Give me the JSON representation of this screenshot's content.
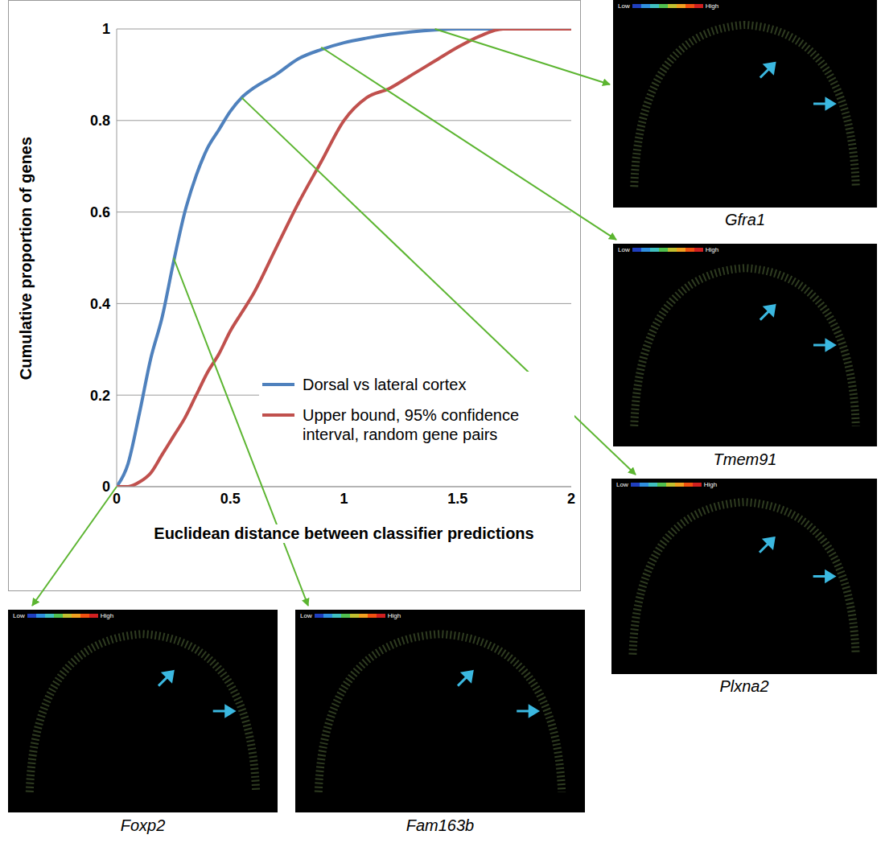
{
  "chart_data": {
    "type": "line",
    "x_label": "Euclidean distance between classifier predictions",
    "y_label": "Cumulative proportion of genes",
    "x": [
      0,
      0.05,
      0.1,
      0.15,
      0.2,
      0.25,
      0.3,
      0.35,
      0.4,
      0.45,
      0.5,
      0.55,
      0.6,
      0.7,
      0.8,
      0.9,
      1.0,
      1.1,
      1.2,
      1.3,
      1.4,
      1.5,
      1.6,
      1.7,
      1.8,
      1.9,
      2.0
    ],
    "series": [
      {
        "name": "Dorsal vs lateral cortex",
        "color": "#4f81bd",
        "values": [
          0,
          0.05,
          0.16,
          0.28,
          0.37,
          0.49,
          0.6,
          0.68,
          0.74,
          0.78,
          0.82,
          0.85,
          0.87,
          0.9,
          0.935,
          0.955,
          0.97,
          0.98,
          0.988,
          0.994,
          0.998,
          1,
          1,
          1,
          1,
          1,
          1
        ]
      },
      {
        "name": "Upper bound, 95% confidence interval, random gene pairs",
        "color": "#c0504d",
        "values": [
          0,
          0,
          0.01,
          0.03,
          0.07,
          0.11,
          0.15,
          0.2,
          0.25,
          0.29,
          0.34,
          0.38,
          0.42,
          0.52,
          0.62,
          0.71,
          0.8,
          0.85,
          0.87,
          0.9,
          0.93,
          0.96,
          0.985,
          1,
          1,
          1,
          1
        ]
      }
    ],
    "xlim": [
      0,
      2
    ],
    "ylim": [
      0,
      1
    ],
    "xticks": [
      0,
      0.5,
      1,
      1.5,
      2
    ],
    "yticks": [
      0,
      0.2,
      0.4,
      0.6,
      0.8,
      1
    ],
    "grid": true,
    "legend": "lower right"
  },
  "images": [
    {
      "label": "Gfra1",
      "point": [
        1.4,
        1.0
      ]
    },
    {
      "label": "Tmem91",
      "point": [
        0.9,
        0.96
      ]
    },
    {
      "label": "Plxna2",
      "point": [
        0.55,
        0.85
      ]
    },
    {
      "label": "Foxp2",
      "point": [
        0,
        0
      ]
    },
    {
      "label": "Fam163b",
      "point": [
        0.25,
        0.5
      ]
    }
  ],
  "colorbar": {
    "low": "Low",
    "high": "High"
  }
}
